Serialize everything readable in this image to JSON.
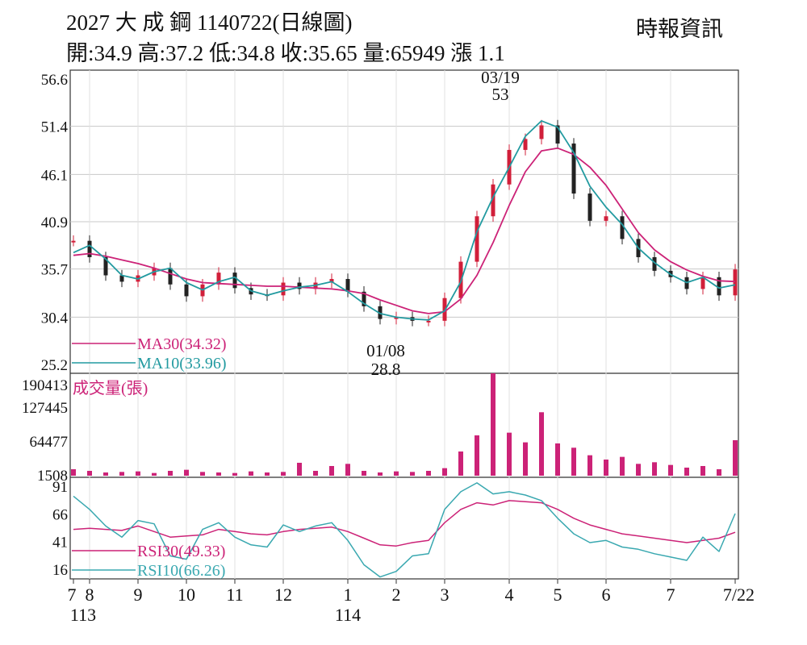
{
  "header": {
    "title": "2027 大 成 鋼 1140722(日線圖)",
    "source": "時報資訊",
    "quote": "開:34.9 高:37.2 低:34.8 收:35.65 量:65949 漲 1.1"
  },
  "chart_data": [
    {
      "type": "candlestick",
      "title": "2027 大成鋼 1140722(日線圖)",
      "ylim": [
        25.2,
        56.6
      ],
      "yticks": [
        "56.6",
        "51.4",
        "46.1",
        "40.9",
        "35.7",
        "30.4",
        "25.2"
      ],
      "ytick_values": [
        56.6,
        51.4,
        46.1,
        40.9,
        35.7,
        30.4,
        25.2
      ],
      "grid": true,
      "series": [
        {
          "name": "MA30(34.32)",
          "color": "#cc2277",
          "values": [
            37.2,
            37.4,
            37.1,
            36.7,
            36.3,
            35.8,
            35.2,
            34.6,
            34.2,
            34.1,
            34.0,
            33.9,
            33.8,
            33.8,
            33.7,
            33.6,
            33.5,
            33.3,
            33.0,
            32.3,
            31.7,
            31.1,
            30.8,
            31.0,
            32.4,
            35.0,
            38.6,
            42.7,
            46.4,
            48.7,
            49.0,
            48.3,
            46.9,
            44.9,
            42.3,
            39.7,
            37.8,
            36.5,
            35.6,
            34.9,
            34.4,
            34.32
          ]
        },
        {
          "name": "MA10(33.96)",
          "color": "#229aa0",
          "values": [
            37.5,
            38.3,
            36.8,
            35.0,
            34.6,
            35.4,
            35.8,
            34.2,
            33.4,
            34.3,
            34.8,
            33.3,
            32.8,
            33.3,
            33.7,
            33.9,
            34.3,
            33.2,
            31.9,
            30.8,
            30.4,
            30.2,
            30.1,
            31.1,
            34.3,
            39.8,
            43.6,
            46.9,
            50.3,
            52.0,
            51.3,
            48.5,
            44.8,
            42.5,
            40.6,
            38.0,
            36.4,
            35.1,
            34.2,
            34.8,
            33.6,
            33.96
          ]
        }
      ],
      "annotations": [
        {
          "label": "03/19",
          "value": "53",
          "type": "high"
        },
        {
          "label": "01/08",
          "value": "28.8",
          "type": "low"
        }
      ],
      "close": [
        38.8,
        37.0,
        35.0,
        34.3,
        35.0,
        35.8,
        34.0,
        32.7,
        34.0,
        35.3,
        33.6,
        32.9,
        32.8,
        34.2,
        33.5,
        34.2,
        34.6,
        33.2,
        31.6,
        30.2,
        30.4,
        30.0,
        30.0,
        32.5,
        36.5,
        41.5,
        45.0,
        48.8,
        50.0,
        51.5,
        49.5,
        44.0,
        41.0,
        41.5,
        39.0,
        37.0,
        35.5,
        34.8,
        33.5,
        34.8,
        32.8,
        35.65
      ]
    },
    {
      "type": "bar",
      "title": "成交量(張)",
      "yticks": [
        "190413",
        "127445",
        "64477",
        "1508"
      ],
      "ytick_values": [
        190413,
        127445,
        64477,
        1508
      ],
      "ylim": [
        0,
        190413
      ],
      "color": "#cc2277",
      "values": [
        12000,
        9000,
        6000,
        7000,
        8000,
        5000,
        9000,
        11000,
        7000,
        6000,
        5000,
        8000,
        6000,
        7000,
        24000,
        9000,
        18000,
        22000,
        9000,
        6000,
        8000,
        7000,
        9000,
        14000,
        45000,
        75000,
        190413,
        80000,
        62000,
        118000,
        60000,
        52000,
        38000,
        30000,
        35000,
        22000,
        25000,
        20000,
        15000,
        18000,
        12000,
        65949
      ]
    },
    {
      "type": "line",
      "ylim": [
        7,
        100
      ],
      "yticks": [
        "91",
        "66",
        "41",
        "16"
      ],
      "ytick_values": [
        91,
        66,
        41,
        16
      ],
      "series": [
        {
          "name": "RSI30(49.33)",
          "color": "#cc2277",
          "values": [
            52,
            53,
            52,
            51,
            55,
            50,
            45,
            46,
            47,
            52,
            50,
            48,
            47,
            50,
            52,
            53,
            54,
            50,
            44,
            38,
            37,
            40,
            42,
            58,
            70,
            76,
            74,
            78,
            77,
            76,
            70,
            62,
            56,
            52,
            48,
            46,
            44,
            42,
            40,
            42,
            44,
            49.33
          ]
        },
        {
          "name": "RSI10(66.26)",
          "color": "#39a8b0",
          "values": [
            82,
            70,
            55,
            45,
            60,
            57,
            28,
            25,
            52,
            58,
            45,
            38,
            36,
            56,
            50,
            55,
            58,
            42,
            20,
            9,
            14,
            28,
            30,
            70,
            86,
            94,
            84,
            86,
            83,
            78,
            62,
            48,
            40,
            42,
            36,
            34,
            30,
            27,
            24,
            45,
            32,
            66.26
          ]
        }
      ]
    }
  ],
  "x_axis": {
    "labels": [
      "7",
      "8",
      "9",
      "10",
      "11",
      "12",
      "1",
      "2",
      "3",
      "4",
      "5",
      "6",
      "7",
      "7/22"
    ],
    "year_labels": [
      "113",
      "114"
    ]
  }
}
